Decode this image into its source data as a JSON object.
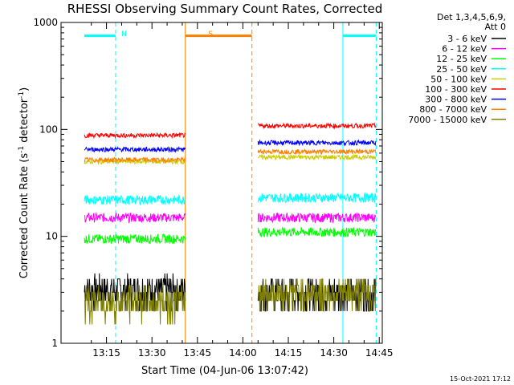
{
  "chart_data": {
    "type": "line",
    "title": "RHESSI Observing Summary Count Rates, Corrected",
    "xlabel": "Start Time (04-Jun-06 13:07:42)",
    "ylabel": "Corrected Count Rate (s⁻¹ detector⁻¹)",
    "ylabel_parts": {
      "pre": "Corrected Count Rate (s",
      "exp1": "-1",
      "mid": " detector",
      "exp2": "-1",
      "post": ")"
    },
    "x_tick_labels": [
      "13:15",
      "13:30",
      "13:45",
      "14:00",
      "14:15",
      "14:30",
      "14:45"
    ],
    "y_tick_labels": [
      "1",
      "10",
      "100",
      "1000"
    ],
    "x_tick_minutes": [
      15,
      30,
      45,
      60,
      75,
      90,
      105
    ],
    "xlim_minutes": [
      0,
      106
    ],
    "x_zero_time": "13:00",
    "ylim": [
      1,
      1000
    ],
    "y_scale": "log",
    "footer_date": "15-Oct-2021 17:12",
    "legend_header": [
      "Det 1,3,4,5,6,9,",
      "Att 0"
    ],
    "series": [
      {
        "name": "3 - 6 keV",
        "color": "#000000"
      },
      {
        "name": "6 - 12 keV",
        "color": "#ff00ff"
      },
      {
        "name": "12 - 25 keV",
        "color": "#00ff00"
      },
      {
        "name": "25 - 50 keV",
        "color": "#00ffff"
      },
      {
        "name": "50 - 100 keV",
        "color": "#cccc00"
      },
      {
        "name": "100 - 300 keV",
        "color": "#ff0000"
      },
      {
        "name": "300 - 800 keV",
        "color": "#0000ff"
      },
      {
        "name": "800 - 7000 keV",
        "color": "#ff8000"
      },
      {
        "name": "7000 - 15000 keV",
        "color": "#808000"
      }
    ],
    "segments": [
      {
        "start": "13:07:42",
        "end": "13:41:00",
        "levels": {
          "3 - 6 keV": 3.2,
          "6 - 12 keV": 15,
          "12 - 25 keV": 9.5,
          "25 - 50 keV": 22,
          "50 - 100 keV": 50,
          "100 - 300 keV": 88,
          "300 - 800 keV": 65,
          "800 - 7000 keV": 52,
          "7000 - 15000 keV": 2.5
        }
      },
      {
        "start": "14:05:00",
        "end": "14:44:00",
        "levels": {
          "3 - 6 keV": 3.0,
          "6 - 12 keV": 15,
          "12 - 25 keV": 11,
          "25 - 50 keV": 23,
          "50 - 100 keV": 55,
          "100 - 300 keV": 108,
          "300 - 800 keV": 75,
          "800 - 7000 keV": 62,
          "7000 - 15000 keV": 3.0
        }
      }
    ],
    "annotations": [
      {
        "label": "N",
        "color": "#00ffff",
        "meaning": "night",
        "start": "13:07:42",
        "end": "13:18:00"
      },
      {
        "label": "S",
        "color": "#ff8000",
        "meaning": "SAA",
        "start": "13:41:00",
        "end": "14:03:00"
      },
      {
        "label": "",
        "color": "#00ffff",
        "meaning": "night",
        "start": "14:33:00",
        "end": "14:44:00"
      }
    ],
    "grid": false
  }
}
